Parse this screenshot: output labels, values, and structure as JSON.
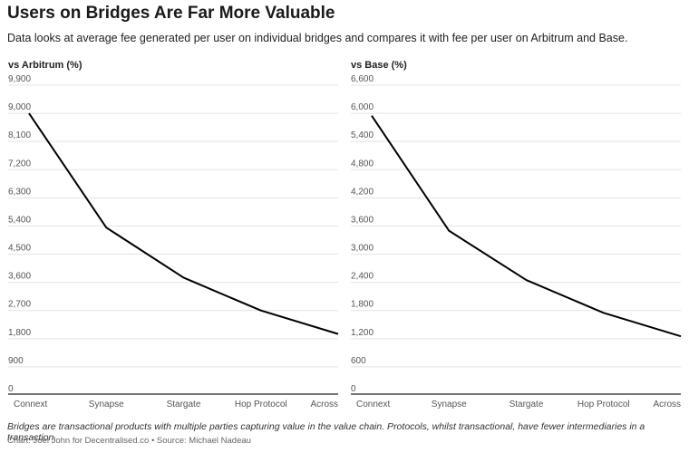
{
  "title": "Users on Bridges Are Far More Valuable",
  "subtitle": "Data looks at average fee generated per user on individual bridges and compares it with fee per user on Arbitrum and Base.",
  "note": "Bridges are transactional products with multiple parties capturing value in the value chain. Protocols, whilst transactional, have fewer intermediaries in a transaction.",
  "credit": "Chart: Joel John for Decentralised.co • Source: Michael Nadeau",
  "chart_data": [
    {
      "type": "line",
      "title": "vs Arbitrum (%)",
      "categories": [
        "Connext",
        "Synapse",
        "Stargate",
        "Hop Protocol",
        "Across"
      ],
      "series": [
        {
          "values": [
            9000,
            5350,
            3750,
            2700,
            1950
          ]
        }
      ],
      "ylim": [
        0,
        9900
      ],
      "yticks": [
        0,
        900,
        1800,
        2700,
        3600,
        4500,
        5400,
        6300,
        7200,
        8100,
        9000,
        9900
      ],
      "ytick_labels": [
        "0",
        "900",
        "1,800",
        "2,700",
        "3,600",
        "4,500",
        "5,400",
        "6,300",
        "7,200",
        "8,100",
        "9,000",
        "9,900"
      ],
      "grid": true,
      "color": "#000000"
    },
    {
      "type": "line",
      "title": "vs Base (%)",
      "categories": [
        "Connext",
        "Synapse",
        "Stargate",
        "Hop Protocol",
        "Across"
      ],
      "series": [
        {
          "values": [
            5950,
            3500,
            2450,
            1750,
            1250
          ]
        }
      ],
      "ylim": [
        0,
        6600
      ],
      "yticks": [
        0,
        600,
        1200,
        1800,
        2400,
        3000,
        3600,
        4200,
        4800,
        5400,
        6000,
        6600
      ],
      "ytick_labels": [
        "0",
        "600",
        "1,200",
        "1,800",
        "2,400",
        "3,000",
        "3,600",
        "4,200",
        "4,800",
        "5,400",
        "6,000",
        "6,600"
      ],
      "grid": true,
      "color": "#000000"
    }
  ]
}
